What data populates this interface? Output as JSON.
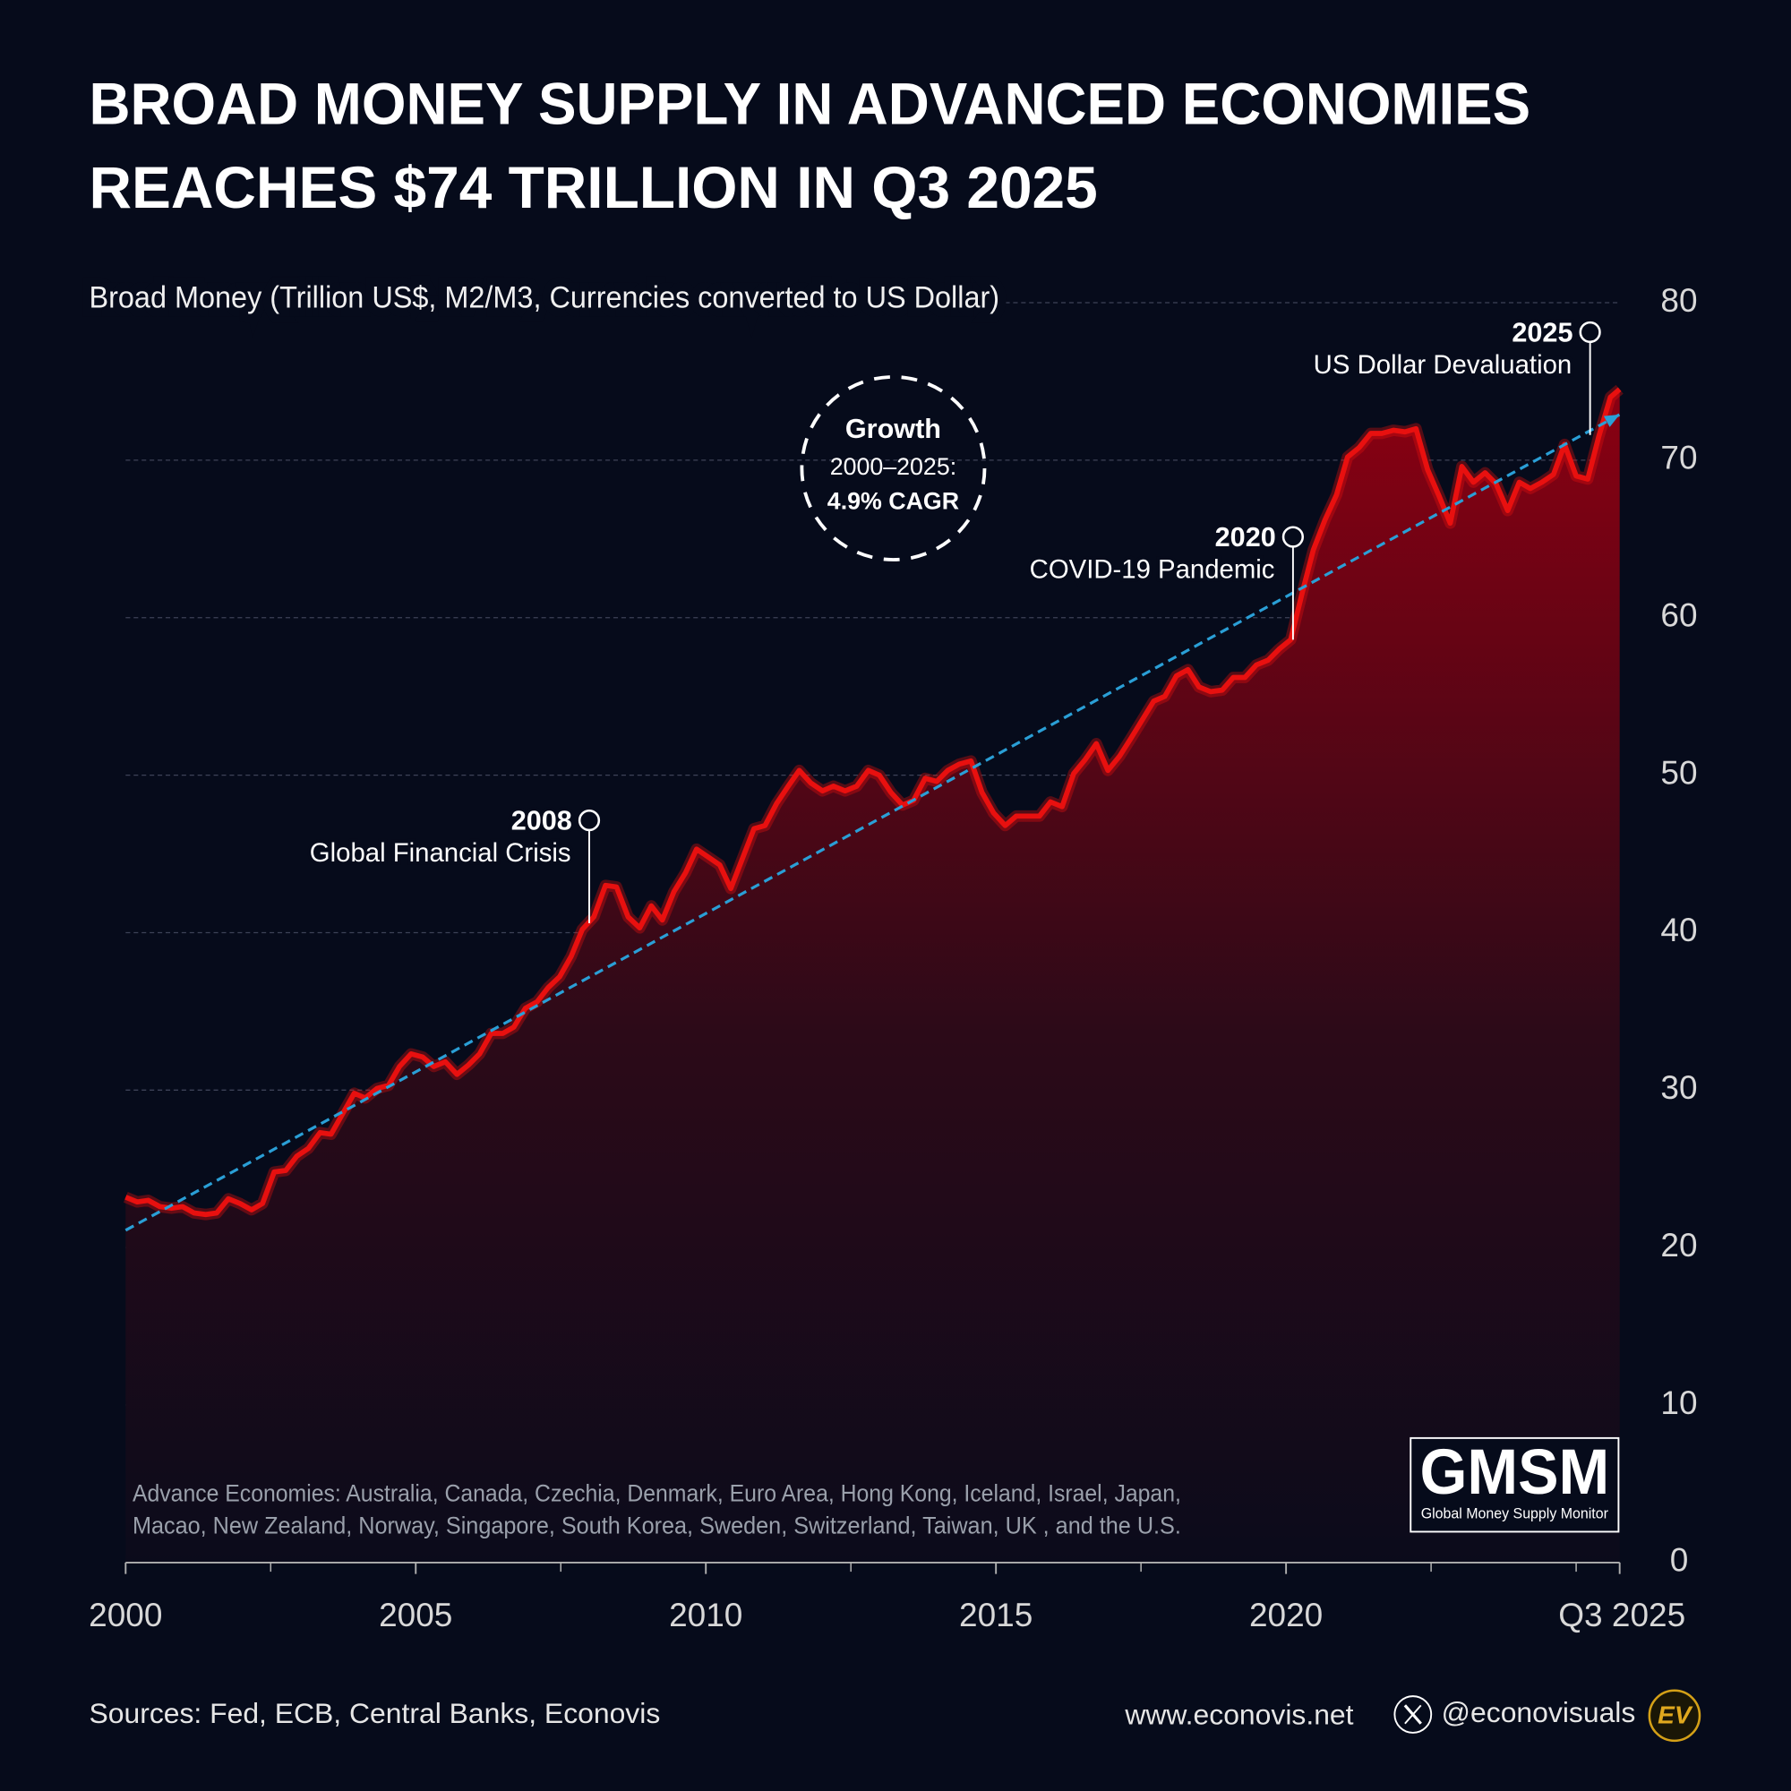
{
  "chart_data": {
    "type": "area",
    "title": [
      "BROAD MONEY SUPPLY IN ADVANCED ECONOMIES",
      "REACHES $74 TRILLION IN Q3 2025"
    ],
    "subtitle": "Broad Money (Trillion US$, M2/M3, Currencies converted to US Dollar)",
    "color": "#e8100f",
    "x": [
      2000.0,
      2000.2,
      2000.39,
      2000.59,
      2000.79,
      2000.98,
      2001.18,
      2001.38,
      2001.57,
      2001.77,
      2001.97,
      2002.17,
      2002.36,
      2002.56,
      2002.76,
      2002.95,
      2003.15,
      2003.35,
      2003.54,
      2003.74,
      2003.94,
      2004.13,
      2004.33,
      2004.53,
      2004.72,
      2004.92,
      2005.12,
      2005.31,
      2005.51,
      2005.71,
      2005.91,
      2006.1,
      2006.3,
      2006.5,
      2006.69,
      2006.89,
      2007.09,
      2007.28,
      2007.48,
      2007.68,
      2007.87,
      2008.07,
      2008.27,
      2008.46,
      2008.66,
      2008.86,
      2009.06,
      2009.25,
      2009.45,
      2009.65,
      2009.84,
      2010.04,
      2010.24,
      2010.43,
      2010.63,
      2010.83,
      2011.02,
      2011.22,
      2011.42,
      2011.61,
      2011.81,
      2012.01,
      2012.2,
      2012.4,
      2012.6,
      2012.8,
      2012.99,
      2013.19,
      2013.39,
      2013.58,
      2013.78,
      2013.98,
      2014.17,
      2014.37,
      2014.57,
      2014.76,
      2014.96,
      2015.16,
      2015.35,
      2015.55,
      2015.75,
      2015.94,
      2016.14,
      2016.34,
      2016.54,
      2016.73,
      2016.93,
      2017.13,
      2017.32,
      2017.52,
      2017.72,
      2017.91,
      2018.11,
      2018.31,
      2018.5,
      2018.7,
      2018.9,
      2019.09,
      2019.29,
      2019.49,
      2019.69,
      2019.88,
      2020.08,
      2020.28,
      2020.47,
      2020.67,
      2020.87,
      2021.06,
      2021.26,
      2021.46,
      2021.65,
      2021.85,
      2022.05,
      2022.24,
      2022.44,
      2022.64,
      2022.83,
      2023.03,
      2023.23,
      2023.43,
      2023.62,
      2023.82,
      2024.02,
      2024.21,
      2024.41,
      2024.61,
      2024.8,
      2025.0,
      2025.2,
      2025.39,
      2025.59,
      2025.75
    ],
    "values": [
      23.2,
      22.9,
      23.0,
      22.6,
      22.5,
      22.6,
      22.2,
      22.1,
      22.2,
      23.1,
      22.8,
      22.4,
      22.8,
      24.8,
      24.9,
      25.8,
      26.3,
      27.3,
      27.2,
      28.5,
      29.8,
      29.5,
      30.1,
      30.3,
      31.5,
      32.3,
      32.1,
      31.5,
      31.8,
      31.0,
      31.6,
      32.3,
      33.6,
      33.6,
      34.0,
      35.2,
      35.6,
      36.5,
      37.2,
      38.5,
      40.2,
      41.0,
      43.0,
      42.9,
      41.0,
      40.3,
      41.7,
      40.8,
      42.6,
      43.8,
      45.3,
      44.8,
      44.3,
      42.8,
      44.7,
      46.6,
      46.8,
      48.2,
      49.3,
      50.3,
      49.5,
      49.0,
      49.3,
      49.0,
      49.3,
      50.3,
      50.0,
      48.9,
      48.1,
      48.4,
      49.8,
      49.6,
      50.3,
      50.7,
      50.9,
      48.9,
      47.6,
      46.8,
      47.4,
      47.4,
      47.4,
      48.3,
      48.0,
      50.1,
      51.0,
      52.0,
      50.3,
      51.2,
      52.3,
      53.5,
      54.7,
      55.0,
      56.3,
      56.7,
      55.6,
      55.3,
      55.4,
      56.2,
      56.2,
      57.0,
      57.3,
      58.0,
      58.6,
      61.6,
      64.3,
      66.2,
      67.8,
      70.2,
      70.8,
      71.7,
      71.7,
      71.9,
      71.8,
      72.0,
      69.4,
      67.7,
      66.0,
      69.6,
      68.6,
      69.2,
      68.5,
      66.8,
      68.6,
      68.2,
      68.6,
      69.1,
      71.0,
      69.0,
      68.8,
      71.5,
      74.0,
      74.5
    ],
    "trend": {
      "color": "#2a9fd6",
      "x": [
        2000,
        2025.75
      ],
      "values": [
        21.1,
        72.9
      ]
    },
    "xlim": [
      2000,
      2025.75
    ],
    "xticks": [
      2000,
      2005,
      2010,
      2015,
      2020,
      {
        "value": 2025.75,
        "label": "Q3 2025"
      }
    ],
    "x_minor_ticks": [
      2002.5,
      2007.5,
      2012.5,
      2017.5,
      2022.5,
      2025
    ],
    "ylim": [
      0,
      80
    ],
    "yticks": [
      0,
      10,
      20,
      30,
      40,
      50,
      60,
      70,
      80
    ],
    "grid": true,
    "annotations": [
      {
        "year": "2008",
        "text": "Global Financial Crisis",
        "x": 2007.99,
        "value": 40.6
      },
      {
        "year": "2020",
        "text": "COVID-19 Pandemic",
        "x": 2020.12,
        "value": 58.6
      },
      {
        "year": "2025",
        "text": "US Dollar Devaluation",
        "x": 2025.24,
        "value": 71.6
      }
    ],
    "cagr": [
      "Growth",
      "2000–2025:",
      "4.9% CAGR"
    ],
    "footnote": [
      "Advance Economies: Australia, Canada, Czechia, Denmark, Euro Area, Hong Kong, Iceland, Israel, Japan,",
      "Macao, New Zealand, Norway, Singapore, South Korea, Sweden, Switzerland, Taiwan, UK , and the U.S."
    ],
    "logo": {
      "name": "GMSM",
      "text": "Global Money Supply Monitor"
    },
    "source": "Sources: Fed, ECB, Central Banks, Econovis",
    "website": "www.econovis.net",
    "handle": "@econovisuals",
    "brand": "EV"
  }
}
